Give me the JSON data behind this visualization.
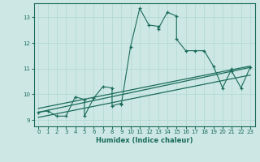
{
  "xlabel": "Humidex (Indice chaleur)",
  "background_color": "#cde8e4",
  "line_color": "#1a6b5a",
  "grid_color": "#b0d8d0",
  "xlim": [
    -0.5,
    23.5
  ],
  "ylim": [
    8.75,
    13.55
  ],
  "xticks": [
    0,
    1,
    2,
    3,
    4,
    5,
    6,
    7,
    8,
    9,
    10,
    11,
    12,
    13,
    14,
    15,
    16,
    17,
    18,
    19,
    20,
    21,
    22,
    23
  ],
  "yticks": [
    9,
    10,
    11,
    12,
    13
  ],
  "data_x": [
    0,
    1,
    2,
    3,
    4,
    5,
    5,
    6,
    7,
    8,
    8,
    9,
    9,
    10,
    11,
    12,
    13,
    13,
    14,
    15,
    15,
    16,
    17,
    18,
    19,
    20,
    21,
    21,
    22,
    23
  ],
  "data_y": [
    9.3,
    9.35,
    9.15,
    9.15,
    9.9,
    9.8,
    9.15,
    9.85,
    10.3,
    10.25,
    9.55,
    9.65,
    9.6,
    11.85,
    13.35,
    12.7,
    12.65,
    12.55,
    13.2,
    13.05,
    12.15,
    11.7,
    11.7,
    11.7,
    11.1,
    10.25,
    11.0,
    10.9,
    10.25,
    11.05
  ],
  "trend1_x": [
    0,
    23
  ],
  "trend1_y": [
    9.1,
    10.75
  ],
  "trend2_x": [
    0,
    23
  ],
  "trend2_y": [
    9.3,
    11.05
  ],
  "trend3_x": [
    0,
    23
  ],
  "trend3_y": [
    9.45,
    11.1
  ]
}
